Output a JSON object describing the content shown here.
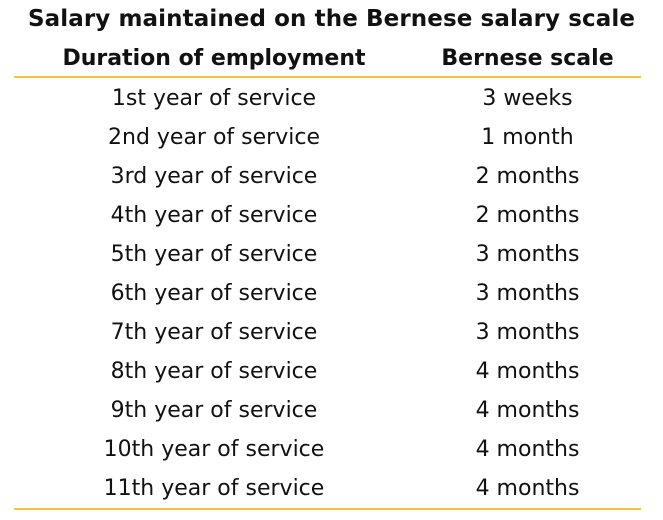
{
  "table": {
    "caption": "Salary maintained on the Bernese salary scale",
    "headers": {
      "duration": "Duration of employment",
      "scale": "Bernese scale"
    },
    "rows": [
      {
        "duration": "1st year of service",
        "scale": "3 weeks"
      },
      {
        "duration": "2nd year of service",
        "scale": "1 month"
      },
      {
        "duration": "3rd year of service",
        "scale": "2 months"
      },
      {
        "duration": "4th year of service",
        "scale": "2 months"
      },
      {
        "duration": "5th year of service",
        "scale": "3 months"
      },
      {
        "duration": "6th year of service",
        "scale": "3 months"
      },
      {
        "duration": "7th year of service",
        "scale": "3 months"
      },
      {
        "duration": "8th year of service",
        "scale": "4 months"
      },
      {
        "duration": "9th year of service",
        "scale": "4 months"
      },
      {
        "duration": "10th year of service",
        "scale": "4 months"
      },
      {
        "duration": "11th year of service",
        "scale": "4 months"
      }
    ],
    "rule_color": "#F5C242"
  }
}
